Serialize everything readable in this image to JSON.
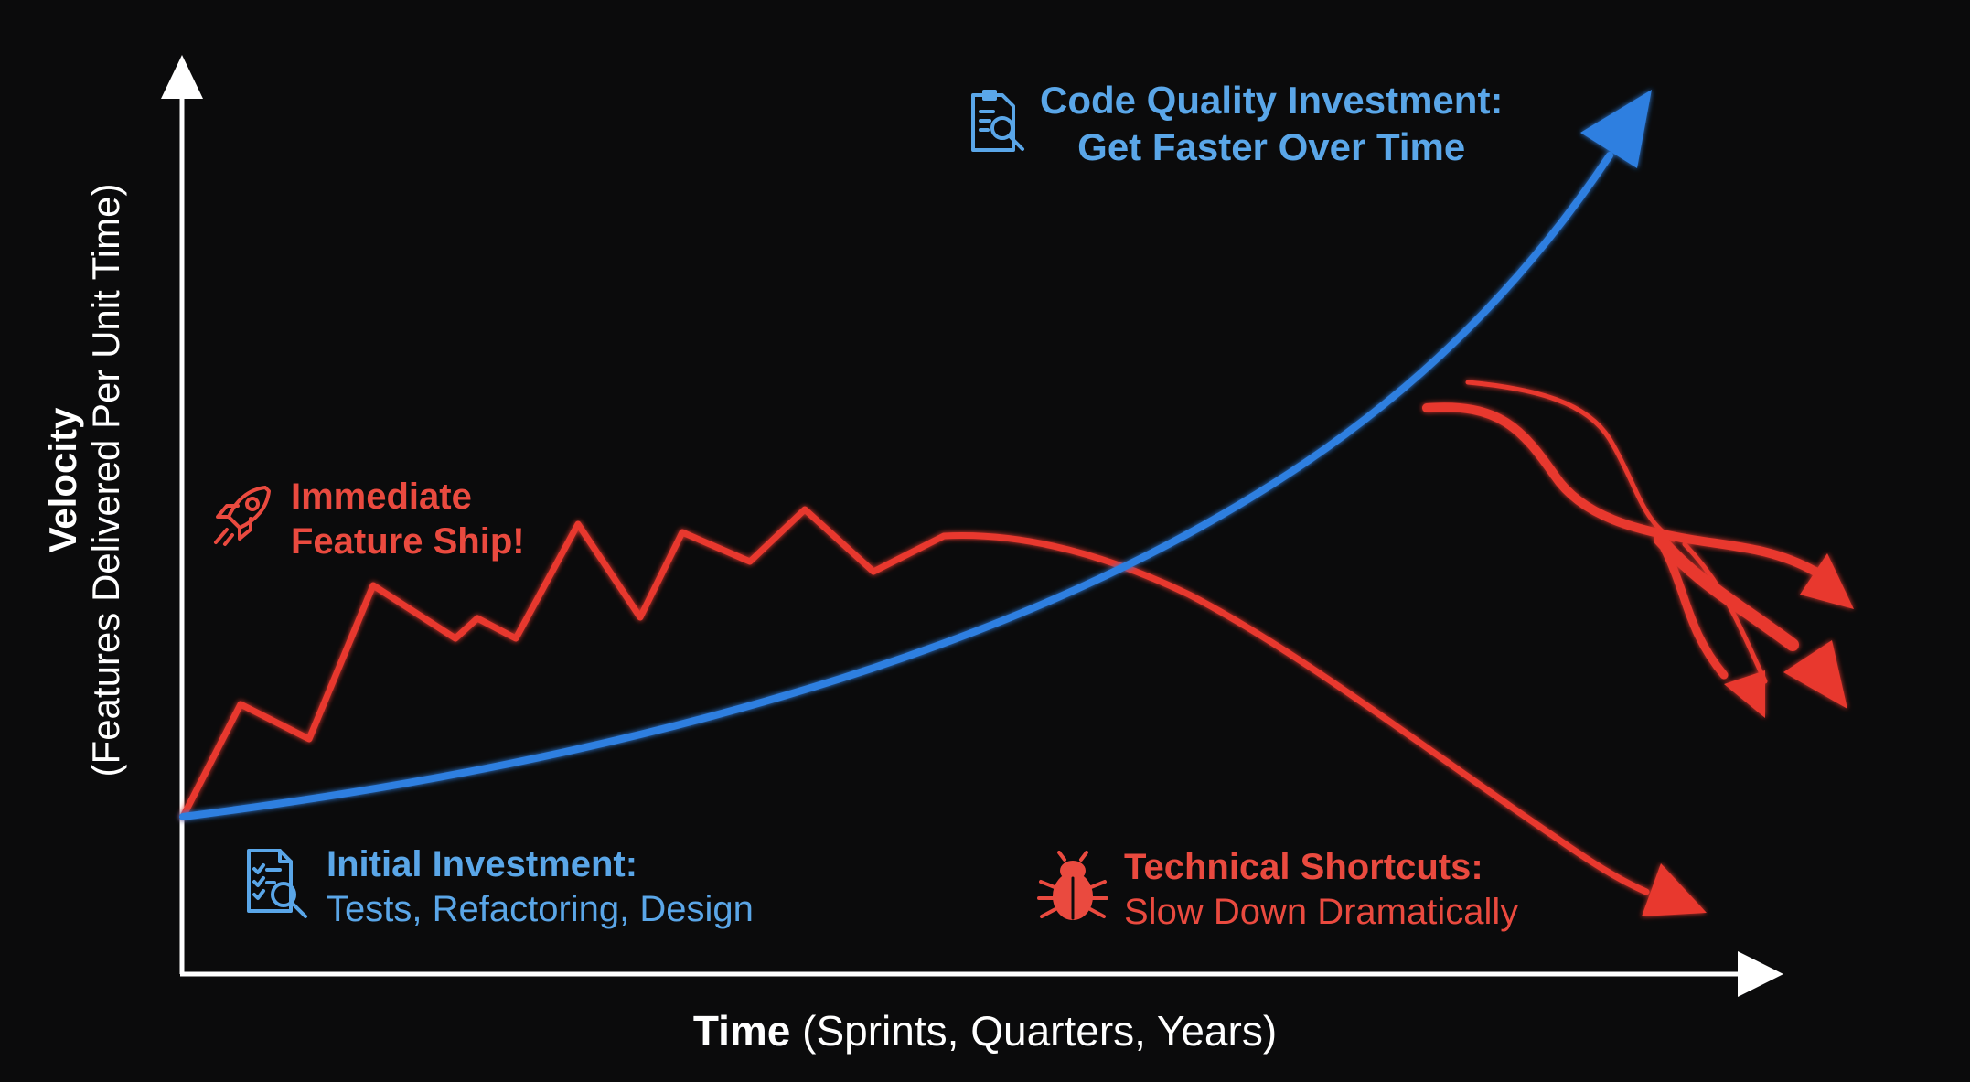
{
  "axes": {
    "y_title": "Velocity",
    "y_subtitle": "(Features Delivered Per Unit Time)",
    "x_title": "Time",
    "x_subtitle": "(Sprints, Quarters, Years)",
    "axis_color": "#ffffff"
  },
  "annotations": {
    "code_quality": {
      "line1": "Code Quality Investment:",
      "line2": "Get Faster Over Time",
      "icon": "document-search-icon",
      "color": "#5aa6e8"
    },
    "immediate": {
      "line1": "Immediate",
      "line2": "Feature Ship!",
      "icon": "rocket-icon",
      "color": "#ea4a3f"
    },
    "initial": {
      "line1": "Initial Investment:",
      "line2": "Tests, Refactoring, Design",
      "icon": "checklist-search-icon",
      "color": "#5aa6e8"
    },
    "shortcuts": {
      "line1": "Technical Shortcuts:",
      "line2": "Slow Down Dramatically",
      "icon": "bug-icon",
      "color": "#ea4a3f"
    }
  },
  "curves": {
    "quality_curve": {
      "color": "#2f7fe0",
      "trend": "exponential-increase"
    },
    "shortcut_curve": {
      "color": "#e8382f",
      "trend": "jagged-rise-then-decline"
    },
    "branching_arrows": {
      "color": "#e8382f",
      "count": 3
    }
  }
}
